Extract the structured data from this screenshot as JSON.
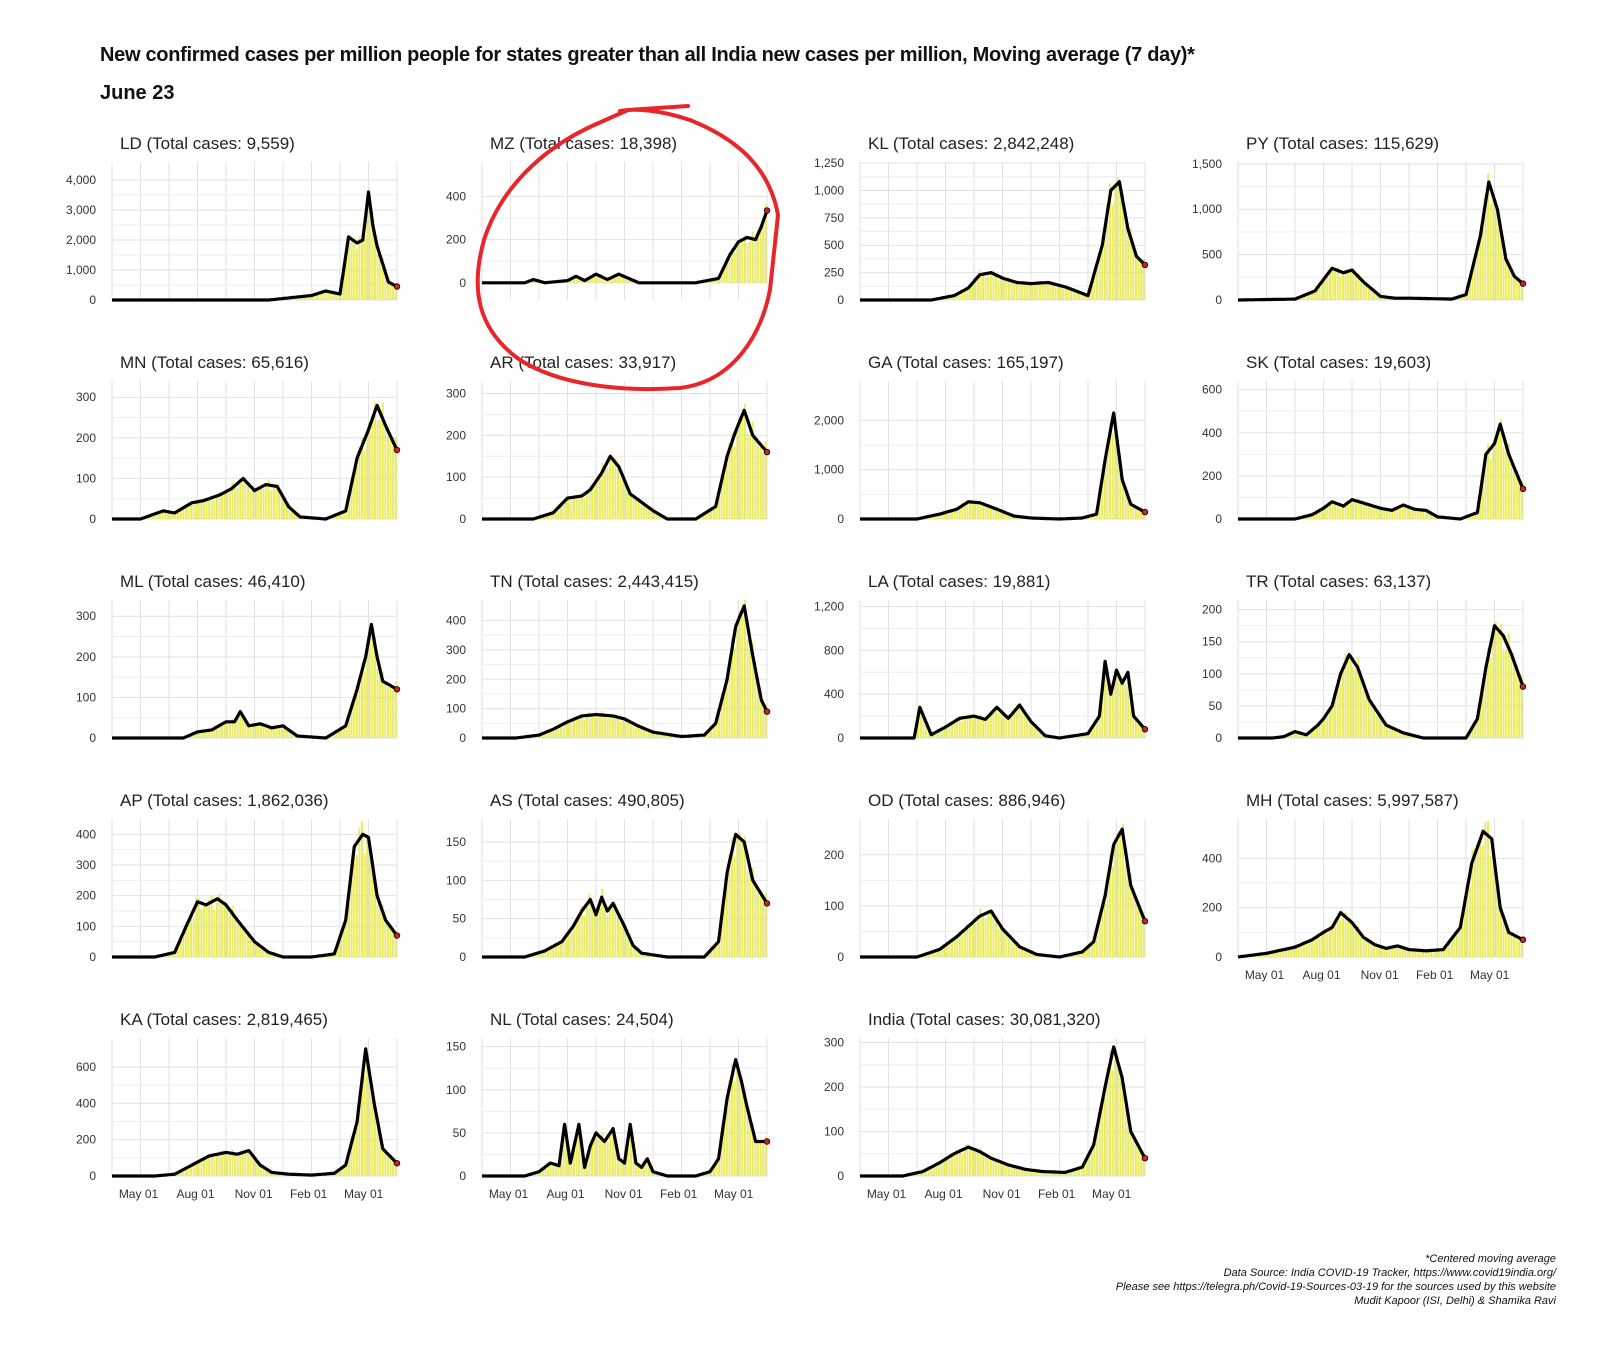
{
  "header": {
    "title": "New confirmed cases per million people for states greater than all India new cases per million, Moving average (7 day)*",
    "subtitle": "June 23"
  },
  "footer": {
    "lines": [
      "*Centered moving average",
      "Data Source: India COVID-19 Tracker, https://www.covid19india.org/",
      "Please see https://telegra.ph/Covid-19-Sources-03-19 for the sources used by this website",
      "Mudit Kapoor (ISI, Delhi) & Shamika Ravi"
    ]
  },
  "colors": {
    "bar": "#e6e84a",
    "line": "#000000",
    "endpoint": "#cc2222",
    "grid": "#e2e2e2",
    "annotation": "#e8262a"
  },
  "x_axis": {
    "tick_labels": [
      "May 01",
      "Aug 01",
      "Nov 01",
      "Feb 01",
      "May 01"
    ],
    "tick_positions": [
      0.093,
      0.293,
      0.497,
      0.69,
      0.883
    ]
  },
  "chart_data": [
    {
      "type": "line",
      "state": "LD",
      "title": "LD (Total cases: 9,559)",
      "ylim": [
        0,
        4600
      ],
      "yticks": [
        0,
        1000,
        2000,
        3000,
        4000
      ],
      "ytick_labels": [
        "0",
        "1,000",
        "2,000",
        "3,000",
        "4,000"
      ],
      "show_x_labels": false,
      "x": [
        0,
        0.55,
        0.63,
        0.7,
        0.75,
        0.8,
        0.83,
        0.86,
        0.88,
        0.9,
        0.915,
        0.93,
        0.95,
        0.97,
        1
      ],
      "y": [
        0,
        0,
        80,
        150,
        300,
        200,
        2100,
        1900,
        2000,
        3600,
        2500,
        1800,
        1200,
        600,
        450
      ]
    },
    {
      "type": "line",
      "state": "MZ",
      "title": "MZ (Total cases: 18,398)",
      "ylim": [
        -80,
        560
      ],
      "yticks": [
        0,
        200,
        400
      ],
      "ytick_labels": [
        "0",
        "200",
        "400"
      ],
      "show_x_labels": false,
      "x": [
        0,
        0.15,
        0.18,
        0.22,
        0.3,
        0.33,
        0.36,
        0.4,
        0.44,
        0.48,
        0.55,
        0.75,
        0.83,
        0.87,
        0.9,
        0.93,
        0.96,
        0.98,
        1
      ],
      "y": [
        0,
        0,
        15,
        0,
        10,
        30,
        10,
        40,
        15,
        40,
        0,
        0,
        20,
        130,
        190,
        210,
        200,
        260,
        335
      ]
    },
    {
      "type": "line",
      "state": "KL",
      "title": "KL (Total cases: 2,842,248)",
      "ylim": [
        0,
        1260
      ],
      "yticks": [
        0,
        250,
        500,
        750,
        1000,
        1250
      ],
      "ytick_labels": [
        "0",
        "250",
        "500",
        "750",
        "1,000",
        "1,250"
      ],
      "show_x_labels": false,
      "x": [
        0,
        0.25,
        0.33,
        0.38,
        0.42,
        0.46,
        0.5,
        0.55,
        0.6,
        0.66,
        0.72,
        0.8,
        0.85,
        0.88,
        0.91,
        0.94,
        0.97,
        1
      ],
      "y": [
        0,
        0,
        40,
        110,
        230,
        250,
        200,
        160,
        150,
        160,
        120,
        40,
        500,
        1000,
        1080,
        650,
        400,
        320
      ]
    },
    {
      "type": "line",
      "state": "PY",
      "title": "PY (Total cases: 115,629)",
      "ylim": [
        0,
        1520
      ],
      "yticks": [
        0,
        500,
        1000,
        1500
      ],
      "ytick_labels": [
        "0",
        "500",
        "1,000",
        "1,500"
      ],
      "show_x_labels": false,
      "x": [
        0,
        0.2,
        0.27,
        0.33,
        0.37,
        0.4,
        0.44,
        0.5,
        0.55,
        0.6,
        0.75,
        0.8,
        0.85,
        0.88,
        0.91,
        0.94,
        0.97,
        1
      ],
      "y": [
        0,
        10,
        100,
        350,
        300,
        330,
        200,
        40,
        20,
        20,
        10,
        60,
        700,
        1300,
        1000,
        450,
        260,
        180
      ]
    },
    {
      "type": "line",
      "state": "MN",
      "title": "MN (Total cases: 65,616)",
      "ylim": [
        0,
        340
      ],
      "yticks": [
        0,
        100,
        200,
        300
      ],
      "ytick_labels": [
        "0",
        "100",
        "200",
        "300"
      ],
      "show_x_labels": false,
      "x": [
        0,
        0.1,
        0.18,
        0.22,
        0.28,
        0.32,
        0.38,
        0.42,
        0.46,
        0.5,
        0.54,
        0.58,
        0.62,
        0.66,
        0.75,
        0.82,
        0.86,
        0.9,
        0.93,
        0.96,
        1
      ],
      "y": [
        0,
        0,
        20,
        15,
        40,
        45,
        60,
        75,
        100,
        70,
        85,
        80,
        30,
        5,
        0,
        20,
        150,
        220,
        280,
        230,
        170
      ]
    },
    {
      "type": "line",
      "state": "AR",
      "title": "AR (Total cases: 33,917)",
      "ylim": [
        0,
        330
      ],
      "yticks": [
        0,
        100,
        200,
        300
      ],
      "ytick_labels": [
        "0",
        "100",
        "200",
        "300"
      ],
      "show_x_labels": false,
      "x": [
        0,
        0.18,
        0.25,
        0.3,
        0.35,
        0.38,
        0.42,
        0.45,
        0.48,
        0.52,
        0.56,
        0.6,
        0.65,
        0.75,
        0.82,
        0.86,
        0.89,
        0.92,
        0.95,
        1
      ],
      "y": [
        0,
        0,
        15,
        50,
        55,
        70,
        110,
        150,
        125,
        60,
        40,
        20,
        0,
        0,
        30,
        150,
        210,
        260,
        200,
        160
      ]
    },
    {
      "type": "line",
      "state": "GA",
      "title": "GA (Total cases: 165,197)",
      "ylim": [
        0,
        2800
      ],
      "yticks": [
        0,
        1000,
        2000
      ],
      "ytick_labels": [
        "0",
        "1,000",
        "2,000"
      ],
      "show_x_labels": false,
      "x": [
        0,
        0.2,
        0.28,
        0.34,
        0.38,
        0.42,
        0.48,
        0.54,
        0.6,
        0.7,
        0.78,
        0.83,
        0.86,
        0.89,
        0.92,
        0.95,
        1
      ],
      "y": [
        0,
        0,
        100,
        200,
        350,
        330,
        200,
        60,
        20,
        0,
        20,
        100,
        1200,
        2150,
        800,
        300,
        140
      ]
    },
    {
      "type": "line",
      "state": "SK",
      "title": "SK (Total cases: 19,603)",
      "ylim": [
        0,
        640
      ],
      "yticks": [
        0,
        200,
        400,
        600
      ],
      "ytick_labels": [
        "0",
        "200",
        "400",
        "600"
      ],
      "show_x_labels": false,
      "x": [
        0,
        0.2,
        0.26,
        0.3,
        0.33,
        0.37,
        0.4,
        0.45,
        0.5,
        0.54,
        0.58,
        0.62,
        0.66,
        0.7,
        0.78,
        0.84,
        0.87,
        0.9,
        0.92,
        0.95,
        1
      ],
      "y": [
        0,
        0,
        20,
        50,
        80,
        60,
        90,
        70,
        50,
        40,
        65,
        45,
        40,
        10,
        0,
        30,
        300,
        350,
        440,
        300,
        140
      ]
    },
    {
      "type": "line",
      "state": "ML",
      "title": "ML (Total cases: 46,410)",
      "ylim": [
        0,
        340
      ],
      "yticks": [
        0,
        100,
        200,
        300
      ],
      "ytick_labels": [
        "0",
        "100",
        "200",
        "300"
      ],
      "show_x_labels": false,
      "x": [
        0,
        0.25,
        0.3,
        0.35,
        0.4,
        0.43,
        0.45,
        0.48,
        0.52,
        0.56,
        0.6,
        0.65,
        0.75,
        0.82,
        0.86,
        0.89,
        0.91,
        0.93,
        0.95,
        1
      ],
      "y": [
        0,
        0,
        15,
        20,
        40,
        40,
        65,
        30,
        35,
        25,
        30,
        5,
        0,
        30,
        120,
        200,
        280,
        200,
        140,
        120
      ]
    },
    {
      "type": "line",
      "state": "TN",
      "title": "TN (Total cases: 2,443,415)",
      "ylim": [
        0,
        470
      ],
      "yticks": [
        0,
        100,
        200,
        300,
        400
      ],
      "ytick_labels": [
        "0",
        "100",
        "200",
        "300",
        "400"
      ],
      "show_x_labels": false,
      "x": [
        0,
        0.12,
        0.2,
        0.25,
        0.3,
        0.35,
        0.4,
        0.46,
        0.5,
        0.55,
        0.6,
        0.7,
        0.78,
        0.82,
        0.86,
        0.89,
        0.92,
        0.95,
        0.98,
        1
      ],
      "y": [
        0,
        0,
        10,
        30,
        55,
        75,
        80,
        75,
        65,
        40,
        20,
        5,
        10,
        50,
        200,
        380,
        450,
        280,
        130,
        90
      ]
    },
    {
      "type": "line",
      "state": "LA",
      "title": "LA (Total cases: 19,881)",
      "ylim": [
        0,
        1260
      ],
      "yticks": [
        0,
        400,
        800,
        1200
      ],
      "ytick_labels": [
        "0",
        "400",
        "800",
        "1,200"
      ],
      "show_x_labels": false,
      "x": [
        0,
        0.15,
        0.19,
        0.21,
        0.25,
        0.3,
        0.35,
        0.4,
        0.44,
        0.48,
        0.52,
        0.56,
        0.6,
        0.65,
        0.7,
        0.8,
        0.84,
        0.86,
        0.88,
        0.9,
        0.92,
        0.94,
        0.96,
        1
      ],
      "y": [
        0,
        0,
        0,
        280,
        30,
        100,
        180,
        200,
        170,
        280,
        180,
        300,
        150,
        20,
        0,
        40,
        200,
        700,
        400,
        620,
        500,
        600,
        200,
        80
      ]
    },
    {
      "type": "line",
      "state": "TR",
      "title": "TR (Total cases: 63,137)",
      "ylim": [
        0,
        215
      ],
      "yticks": [
        0,
        50,
        100,
        150,
        200
      ],
      "ytick_labels": [
        "0",
        "50",
        "100",
        "150",
        "200"
      ],
      "show_x_labels": false,
      "x": [
        0,
        0.12,
        0.16,
        0.2,
        0.24,
        0.28,
        0.3,
        0.33,
        0.36,
        0.39,
        0.42,
        0.46,
        0.52,
        0.58,
        0.65,
        0.8,
        0.84,
        0.87,
        0.9,
        0.93,
        0.96,
        1
      ],
      "y": [
        0,
        0,
        2,
        10,
        5,
        20,
        30,
        50,
        100,
        130,
        110,
        60,
        20,
        8,
        0,
        0,
        30,
        110,
        175,
        160,
        130,
        80
      ]
    },
    {
      "type": "line",
      "state": "AP",
      "title": "AP (Total cases: 1,862,036)",
      "ylim": [
        0,
        450
      ],
      "yticks": [
        0,
        100,
        200,
        300,
        400
      ],
      "ytick_labels": [
        "0",
        "100",
        "200",
        "300",
        "400"
      ],
      "show_x_labels": false,
      "x": [
        0,
        0.15,
        0.22,
        0.26,
        0.3,
        0.33,
        0.37,
        0.4,
        0.44,
        0.5,
        0.55,
        0.6,
        0.7,
        0.78,
        0.82,
        0.85,
        0.88,
        0.9,
        0.93,
        0.96,
        1
      ],
      "y": [
        0,
        0,
        15,
        100,
        180,
        170,
        190,
        170,
        120,
        50,
        15,
        0,
        0,
        10,
        120,
        360,
        400,
        390,
        200,
        120,
        70
      ]
    },
    {
      "type": "line",
      "state": "AS",
      "title": "AS (Total cases: 490,805)",
      "ylim": [
        0,
        180
      ],
      "yticks": [
        0,
        50,
        100,
        150
      ],
      "ytick_labels": [
        "0",
        "50",
        "100",
        "150"
      ],
      "show_x_labels": false,
      "x": [
        0,
        0.15,
        0.22,
        0.28,
        0.32,
        0.35,
        0.38,
        0.4,
        0.42,
        0.44,
        0.46,
        0.48,
        0.5,
        0.53,
        0.56,
        0.65,
        0.78,
        0.83,
        0.86,
        0.89,
        0.92,
        0.95,
        1
      ],
      "y": [
        0,
        0,
        8,
        20,
        40,
        60,
        75,
        55,
        78,
        60,
        70,
        55,
        40,
        15,
        5,
        0,
        0,
        20,
        110,
        160,
        150,
        100,
        70
      ]
    },
    {
      "type": "line",
      "state": "OD",
      "title": "OD (Total cases: 886,946)",
      "ylim": [
        0,
        270
      ],
      "yticks": [
        0,
        100,
        200
      ],
      "ytick_labels": [
        "0",
        "100",
        "200"
      ],
      "show_x_labels": false,
      "x": [
        0,
        0.2,
        0.28,
        0.34,
        0.38,
        0.42,
        0.46,
        0.5,
        0.56,
        0.62,
        0.7,
        0.78,
        0.82,
        0.86,
        0.89,
        0.92,
        0.95,
        1
      ],
      "y": [
        0,
        0,
        15,
        40,
        60,
        80,
        90,
        55,
        20,
        5,
        0,
        10,
        30,
        120,
        220,
        250,
        140,
        70
      ]
    },
    {
      "type": "line",
      "state": "MH",
      "title": "MH (Total cases: 5,997,587)",
      "ylim": [
        0,
        560
      ],
      "yticks": [
        0,
        200,
        400
      ],
      "ytick_labels": [
        "0",
        "200",
        "400"
      ],
      "show_x_labels": true,
      "x": [
        0,
        0.1,
        0.2,
        0.26,
        0.3,
        0.33,
        0.36,
        0.4,
        0.44,
        0.48,
        0.52,
        0.56,
        0.6,
        0.66,
        0.72,
        0.78,
        0.82,
        0.86,
        0.89,
        0.92,
        0.95,
        1
      ],
      "y": [
        0,
        15,
        40,
        70,
        100,
        120,
        180,
        140,
        80,
        50,
        35,
        45,
        30,
        25,
        30,
        120,
        380,
        510,
        480,
        200,
        100,
        70
      ]
    },
    {
      "type": "line",
      "state": "KA",
      "title": "KA (Total cases: 2,819,465)",
      "ylim": [
        0,
        760
      ],
      "yticks": [
        0,
        200,
        400,
        600
      ],
      "ytick_labels": [
        "0",
        "200",
        "400",
        "600"
      ],
      "show_x_labels": true,
      "x": [
        0,
        0.15,
        0.22,
        0.28,
        0.34,
        0.4,
        0.44,
        0.48,
        0.52,
        0.56,
        0.62,
        0.7,
        0.78,
        0.82,
        0.86,
        0.89,
        0.92,
        0.95,
        1
      ],
      "y": [
        0,
        0,
        10,
        60,
        110,
        130,
        120,
        140,
        60,
        20,
        10,
        5,
        15,
        60,
        300,
        700,
        400,
        150,
        70
      ]
    },
    {
      "type": "line",
      "state": "NL",
      "title": "NL (Total cases: 24,504)",
      "ylim": [
        0,
        160
      ],
      "yticks": [
        0,
        50,
        100,
        150
      ],
      "ytick_labels": [
        "0",
        "50",
        "100",
        "150"
      ],
      "show_x_labels": true,
      "x": [
        0,
        0.15,
        0.2,
        0.24,
        0.27,
        0.29,
        0.31,
        0.34,
        0.36,
        0.38,
        0.4,
        0.43,
        0.46,
        0.48,
        0.5,
        0.52,
        0.54,
        0.56,
        0.58,
        0.6,
        0.65,
        0.75,
        0.8,
        0.83,
        0.86,
        0.89,
        0.91,
        0.93,
        0.96,
        1
      ],
      "y": [
        0,
        0,
        5,
        15,
        12,
        60,
        15,
        60,
        10,
        35,
        50,
        40,
        55,
        20,
        15,
        60,
        15,
        10,
        20,
        5,
        0,
        0,
        5,
        20,
        90,
        135,
        110,
        80,
        40,
        40
      ]
    },
    {
      "type": "line",
      "state": "India",
      "title": "India (Total cases: 30,081,320)",
      "ylim": [
        0,
        310
      ],
      "yticks": [
        0,
        100,
        200,
        300
      ],
      "ytick_labels": [
        "0",
        "100",
        "200",
        "300"
      ],
      "show_x_labels": true,
      "x": [
        0,
        0.15,
        0.22,
        0.28,
        0.33,
        0.38,
        0.42,
        0.46,
        0.52,
        0.58,
        0.64,
        0.72,
        0.78,
        0.82,
        0.86,
        0.89,
        0.92,
        0.95,
        1
      ],
      "y": [
        0,
        0,
        10,
        30,
        50,
        65,
        55,
        40,
        25,
        15,
        10,
        8,
        20,
        70,
        200,
        290,
        220,
        100,
        40
      ]
    }
  ]
}
